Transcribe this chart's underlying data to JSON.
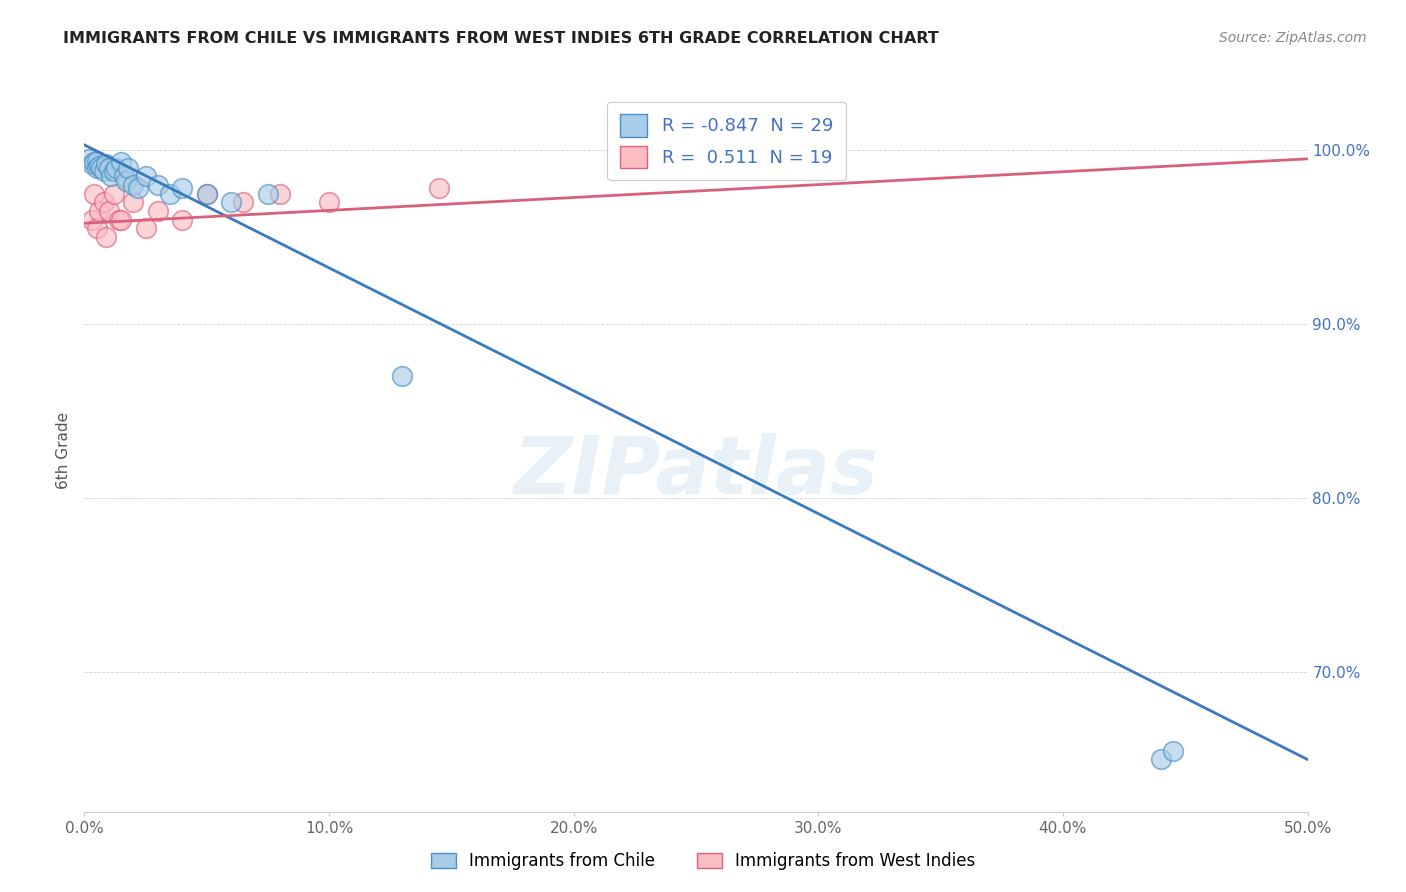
{
  "title": "IMMIGRANTS FROM CHILE VS IMMIGRANTS FROM WEST INDIES 6TH GRADE CORRELATION CHART",
  "source": "Source: ZipAtlas.com",
  "xlabel": "",
  "ylabel": "6th Grade",
  "xlim": [
    0.0,
    50.0
  ],
  "ylim": [
    62.0,
    103.5
  ],
  "xticks": [
    0.0,
    10.0,
    20.0,
    30.0,
    40.0,
    50.0
  ],
  "yticks": [
    70.0,
    80.0,
    90.0,
    100.0
  ],
  "ytick_labels_right": [
    "70.0%",
    "80.0%",
    "90.0%",
    "100.0%"
  ],
  "xtick_labels": [
    "0.0%",
    "10.0%",
    "20.0%",
    "30.0%",
    "40.0%",
    "50.0%"
  ],
  "chile_color": "#a8cde8",
  "west_indies_color": "#f9bdc3",
  "chile_edge_color": "#4a90c4",
  "west_indies_edge_color": "#e06080",
  "chile_line_color": "#3a7abf",
  "west_indies_line_color": "#d9607a",
  "R_chile": -0.847,
  "N_chile": 29,
  "R_west_indies": 0.511,
  "N_west_indies": 19,
  "legend_label_chile": "Immigrants from Chile",
  "legend_label_west_indies": "Immigrants from West Indies",
  "watermark": "ZIPatlas",
  "chile_scatter_x": [
    0.2,
    0.3,
    0.4,
    0.5,
    0.5,
    0.6,
    0.7,
    0.8,
    0.9,
    1.0,
    1.1,
    1.2,
    1.3,
    1.5,
    1.6,
    1.7,
    1.8,
    2.0,
    2.2,
    2.5,
    3.0,
    3.5,
    4.0,
    5.0,
    6.0,
    7.5,
    13.0,
    44.0,
    44.5
  ],
  "chile_scatter_y": [
    99.5,
    99.2,
    99.3,
    99.4,
    99.0,
    99.1,
    99.0,
    98.8,
    99.2,
    99.0,
    98.5,
    98.8,
    99.0,
    99.3,
    98.5,
    98.2,
    99.0,
    98.0,
    97.8,
    98.5,
    98.0,
    97.5,
    97.8,
    97.5,
    97.0,
    97.5,
    87.0,
    65.0,
    65.5
  ],
  "west_indies_scatter_x": [
    0.3,
    0.4,
    0.5,
    0.6,
    0.8,
    0.9,
    1.0,
    1.2,
    1.4,
    1.5,
    2.0,
    2.5,
    3.0,
    4.0,
    5.0,
    6.5,
    8.0,
    10.0,
    14.5
  ],
  "west_indies_scatter_y": [
    96.0,
    97.5,
    95.5,
    96.5,
    97.0,
    95.0,
    96.5,
    97.5,
    96.0,
    96.0,
    97.0,
    95.5,
    96.5,
    96.0,
    97.5,
    97.0,
    97.5,
    97.0,
    97.8
  ],
  "chile_trend_x0": 0.0,
  "chile_trend_y0": 100.3,
  "chile_trend_x1": 50.0,
  "chile_trend_y1": 65.0,
  "wi_trend_x0": 0.0,
  "wi_trend_y0": 95.8,
  "wi_trend_x1": 50.0,
  "wi_trend_y1": 99.5
}
